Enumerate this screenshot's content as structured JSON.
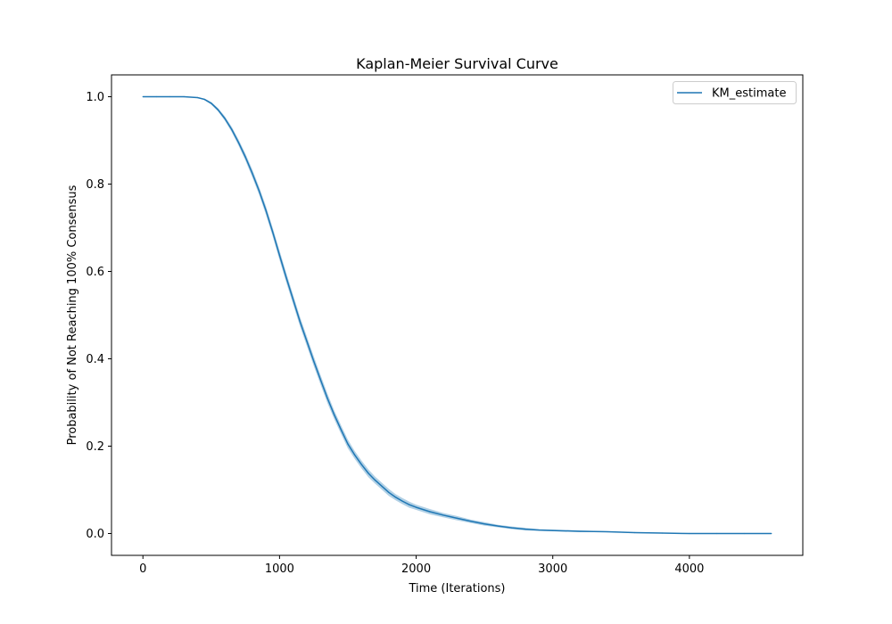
{
  "chart_data": {
    "type": "line",
    "title": "Kaplan-Meier Survival Curve",
    "xlabel": "Time (Iterations)",
    "ylabel": "Probability of Not Reaching 100% Consensus",
    "xlim": [
      -230,
      4830
    ],
    "ylim": [
      -0.05,
      1.05
    ],
    "xticks": [
      0,
      1000,
      2000,
      3000,
      4000
    ],
    "yticks": [
      0.0,
      0.2,
      0.4,
      0.6,
      0.8,
      1.0
    ],
    "xtick_labels": [
      "0",
      "1000",
      "2000",
      "3000",
      "4000"
    ],
    "ytick_labels": [
      "0.0",
      "0.2",
      "0.4",
      "0.6",
      "0.8",
      "1.0"
    ],
    "legend_position": "top-right",
    "grid": false,
    "series": [
      {
        "name": "KM_estimate",
        "color": "#1f77b4",
        "ci_color": "#1f77b4",
        "x": [
          0,
          100,
          200,
          300,
          400,
          450,
          500,
          550,
          600,
          650,
          700,
          750,
          800,
          850,
          900,
          950,
          1000,
          1050,
          1100,
          1150,
          1200,
          1250,
          1300,
          1350,
          1400,
          1450,
          1500,
          1550,
          1600,
          1650,
          1700,
          1750,
          1800,
          1850,
          1900,
          1950,
          2000,
          2100,
          2200,
          2300,
          2400,
          2500,
          2600,
          2700,
          2800,
          2900,
          3000,
          3200,
          3400,
          3600,
          3800,
          4000,
          4200,
          4400,
          4600
        ],
        "y": [
          1.0,
          1.0,
          1.0,
          1.0,
          0.998,
          0.994,
          0.985,
          0.97,
          0.95,
          0.925,
          0.895,
          0.862,
          0.825,
          0.785,
          0.74,
          0.69,
          0.637,
          0.585,
          0.535,
          0.485,
          0.44,
          0.395,
          0.352,
          0.31,
          0.272,
          0.238,
          0.205,
          0.18,
          0.158,
          0.138,
          0.122,
          0.108,
          0.094,
          0.083,
          0.074,
          0.066,
          0.06,
          0.05,
          0.042,
          0.035,
          0.028,
          0.022,
          0.017,
          0.013,
          0.01,
          0.008,
          0.007,
          0.005,
          0.004,
          0.002,
          0.001,
          0.0,
          0.0,
          0.0,
          0.0
        ],
        "ci_width": [
          0.0,
          0.0,
          0.0,
          0.0,
          0.001,
          0.002,
          0.003,
          0.004,
          0.005,
          0.006,
          0.007,
          0.008,
          0.009,
          0.009,
          0.01,
          0.01,
          0.011,
          0.011,
          0.011,
          0.011,
          0.011,
          0.011,
          0.011,
          0.011,
          0.01,
          0.01,
          0.01,
          0.009,
          0.009,
          0.009,
          0.008,
          0.008,
          0.008,
          0.007,
          0.007,
          0.007,
          0.006,
          0.006,
          0.005,
          0.005,
          0.004,
          0.004,
          0.003,
          0.003,
          0.003,
          0.002,
          0.002,
          0.002,
          0.001,
          0.001,
          0.001,
          0.0,
          0.0,
          0.0,
          0.0
        ]
      }
    ]
  }
}
